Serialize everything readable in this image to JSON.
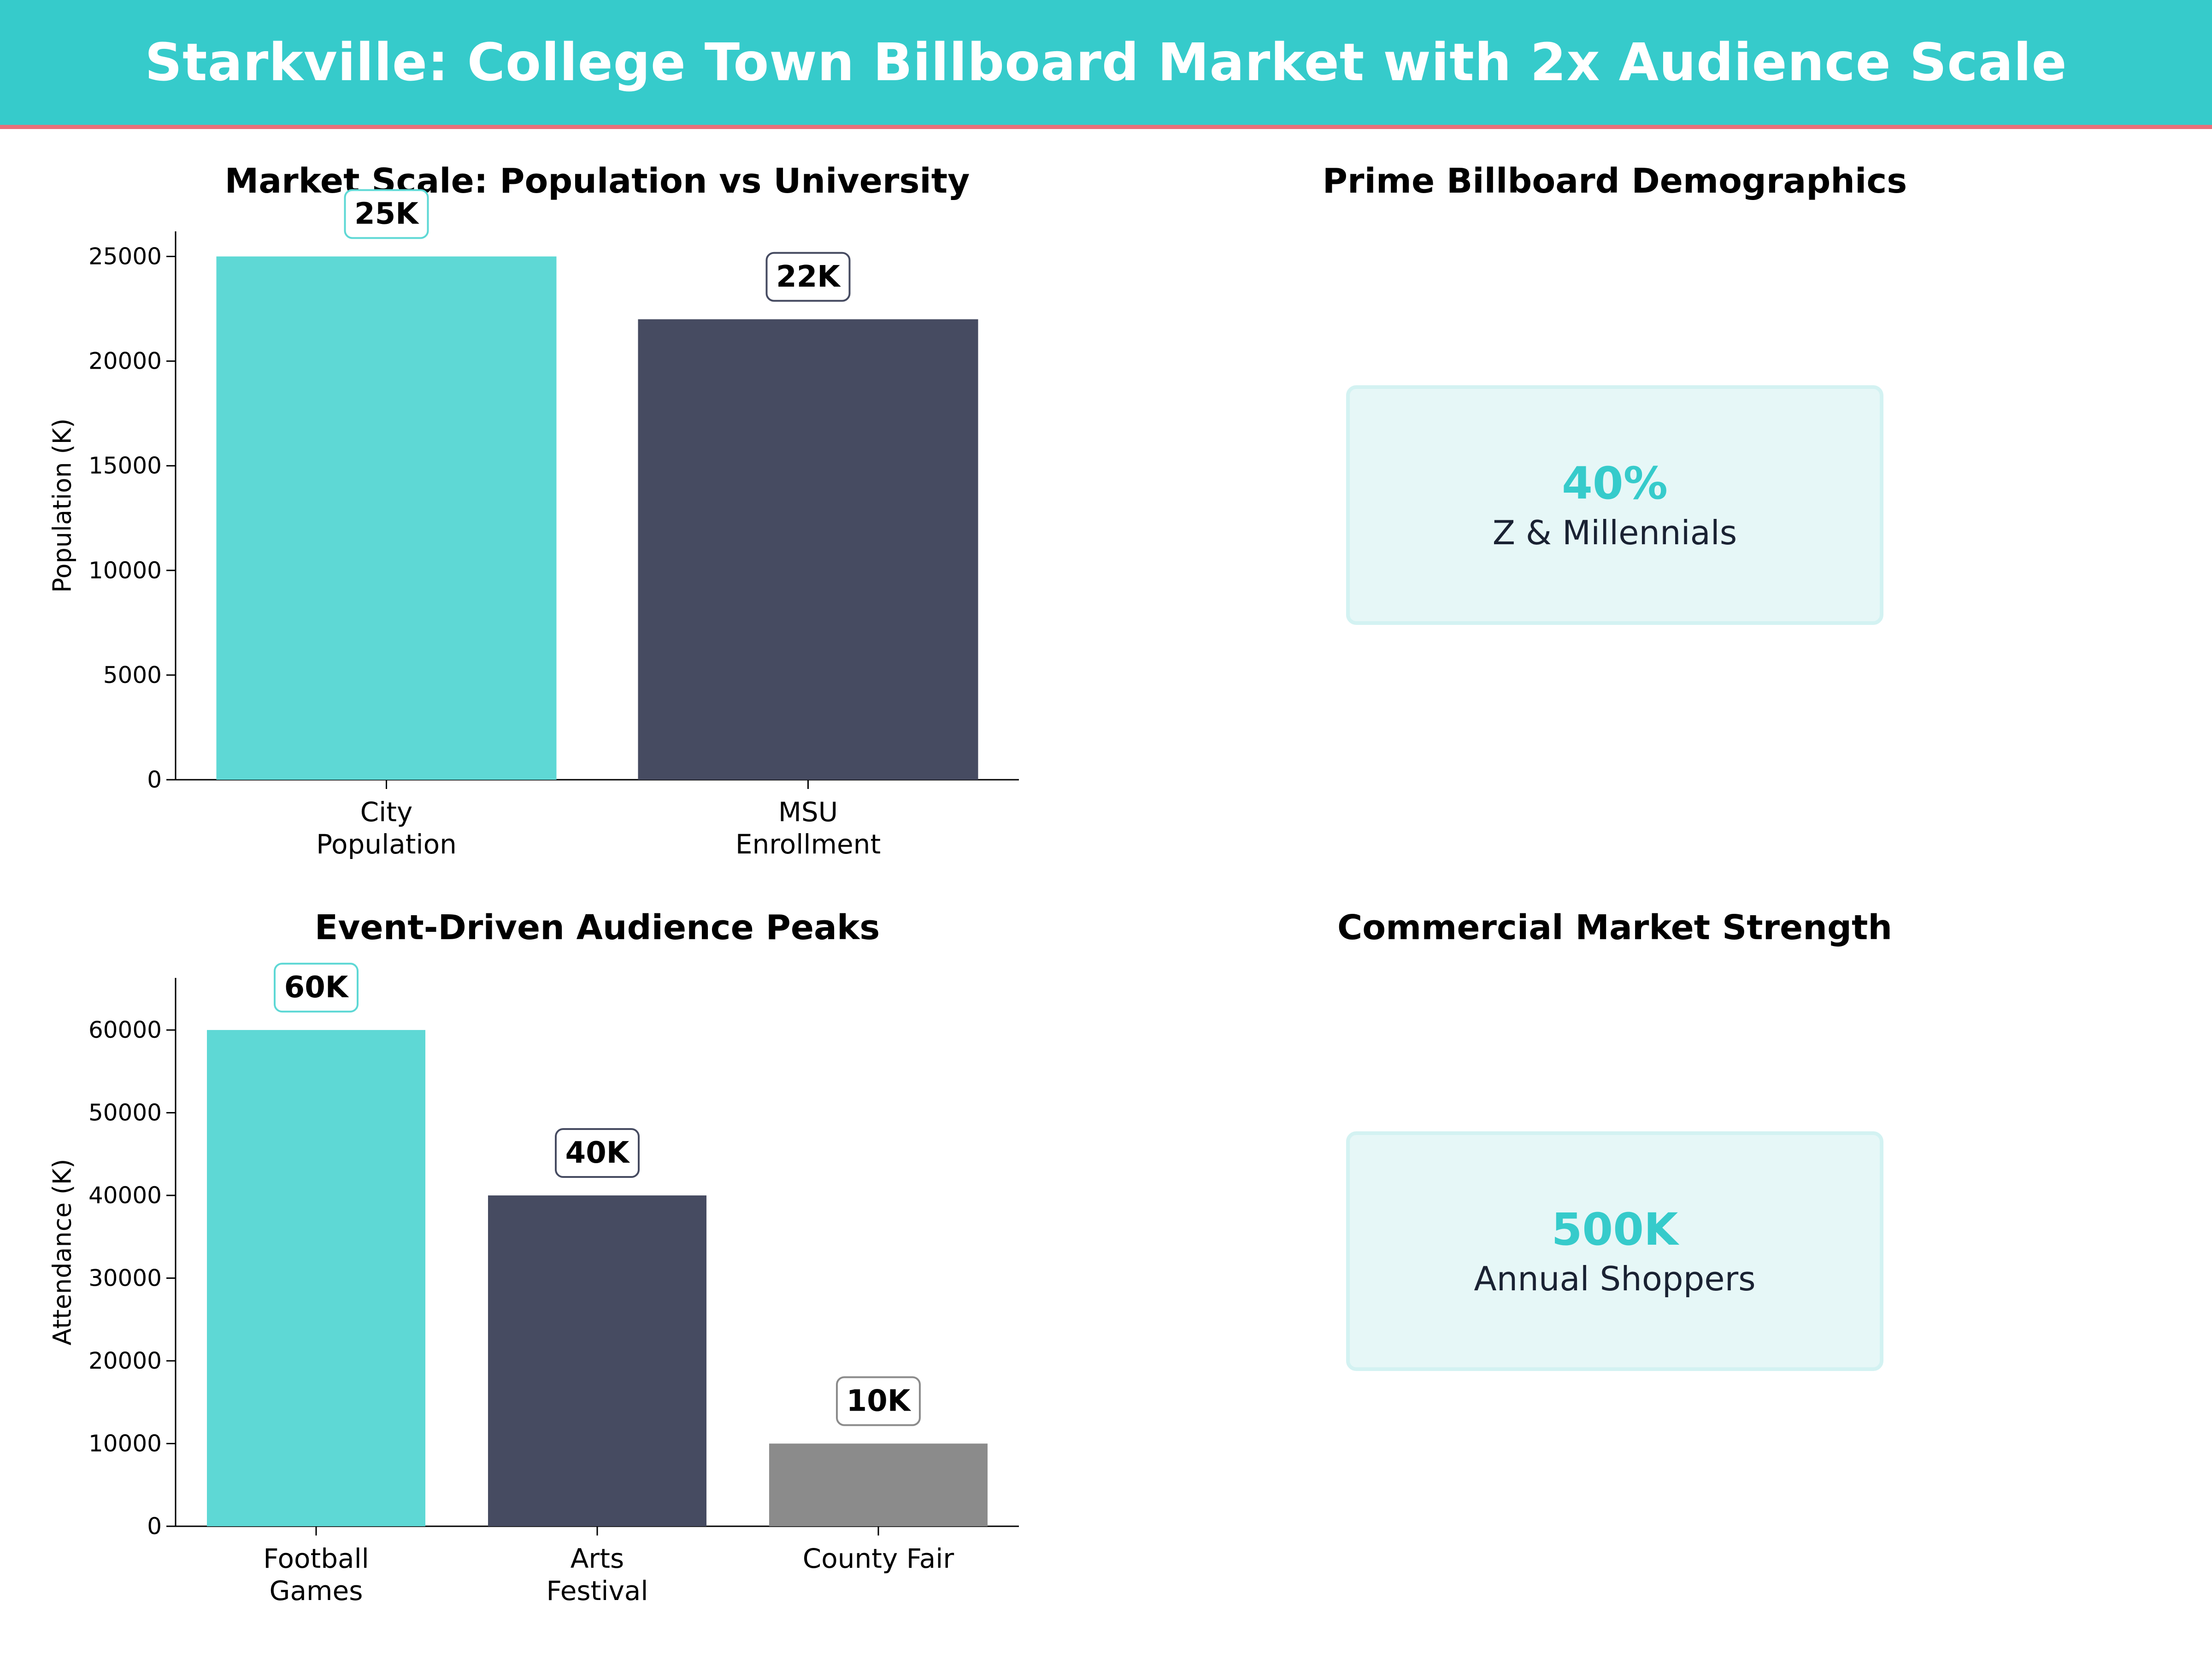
{
  "header": {
    "title": "Starkville: College Town Billboard Market with 2x Audience Scale"
  },
  "colors": {
    "header_bg": "#36cbcb",
    "header_border": "#e8707a",
    "teal": "#5ed8d5",
    "navy": "#464b61",
    "gray": "#8b8b8b",
    "accent": "#36cbcb"
  },
  "chart_data": [
    {
      "type": "bar",
      "title": "Market Scale: Population vs University",
      "categories": [
        [
          "City",
          "Population"
        ],
        [
          "MSU",
          "Enrollment"
        ]
      ],
      "values": [
        25000,
        22000
      ],
      "data_labels": [
        "25K",
        "22K"
      ],
      "ylabel": "Population (K)",
      "ylim": [
        0,
        26200
      ],
      "yticks": [
        0,
        5000,
        10000,
        15000,
        20000,
        25000
      ],
      "colors": [
        "#5ed8d5",
        "#464b61"
      ],
      "label_borders": [
        "#5ed8d5",
        "#464b61"
      ]
    },
    {
      "type": "bar",
      "title": "Event-Driven Audience Peaks",
      "categories": [
        [
          "Football",
          "Games"
        ],
        [
          "Arts",
          "Festival"
        ],
        [
          "County Fair"
        ]
      ],
      "values": [
        60000,
        40000,
        10000
      ],
      "data_labels": [
        "60K",
        "40K",
        "10K"
      ],
      "ylabel": "Attendance (K)",
      "ylim": [
        0,
        66300
      ],
      "yticks": [
        0,
        10000,
        20000,
        30000,
        40000,
        50000,
        60000
      ],
      "colors": [
        "#5ed8d5",
        "#464b61",
        "#8b8b8b"
      ],
      "label_borders": [
        "#5ed8d5",
        "#464b61",
        "#8b8b8b"
      ]
    }
  ],
  "panels": {
    "demographics": {
      "title": "Prime Billboard Demographics",
      "value": "40%",
      "label": "Z & Millennials"
    },
    "commercial": {
      "title": "Commercial Market Strength",
      "value": "500K",
      "label": "Annual Shoppers"
    }
  }
}
